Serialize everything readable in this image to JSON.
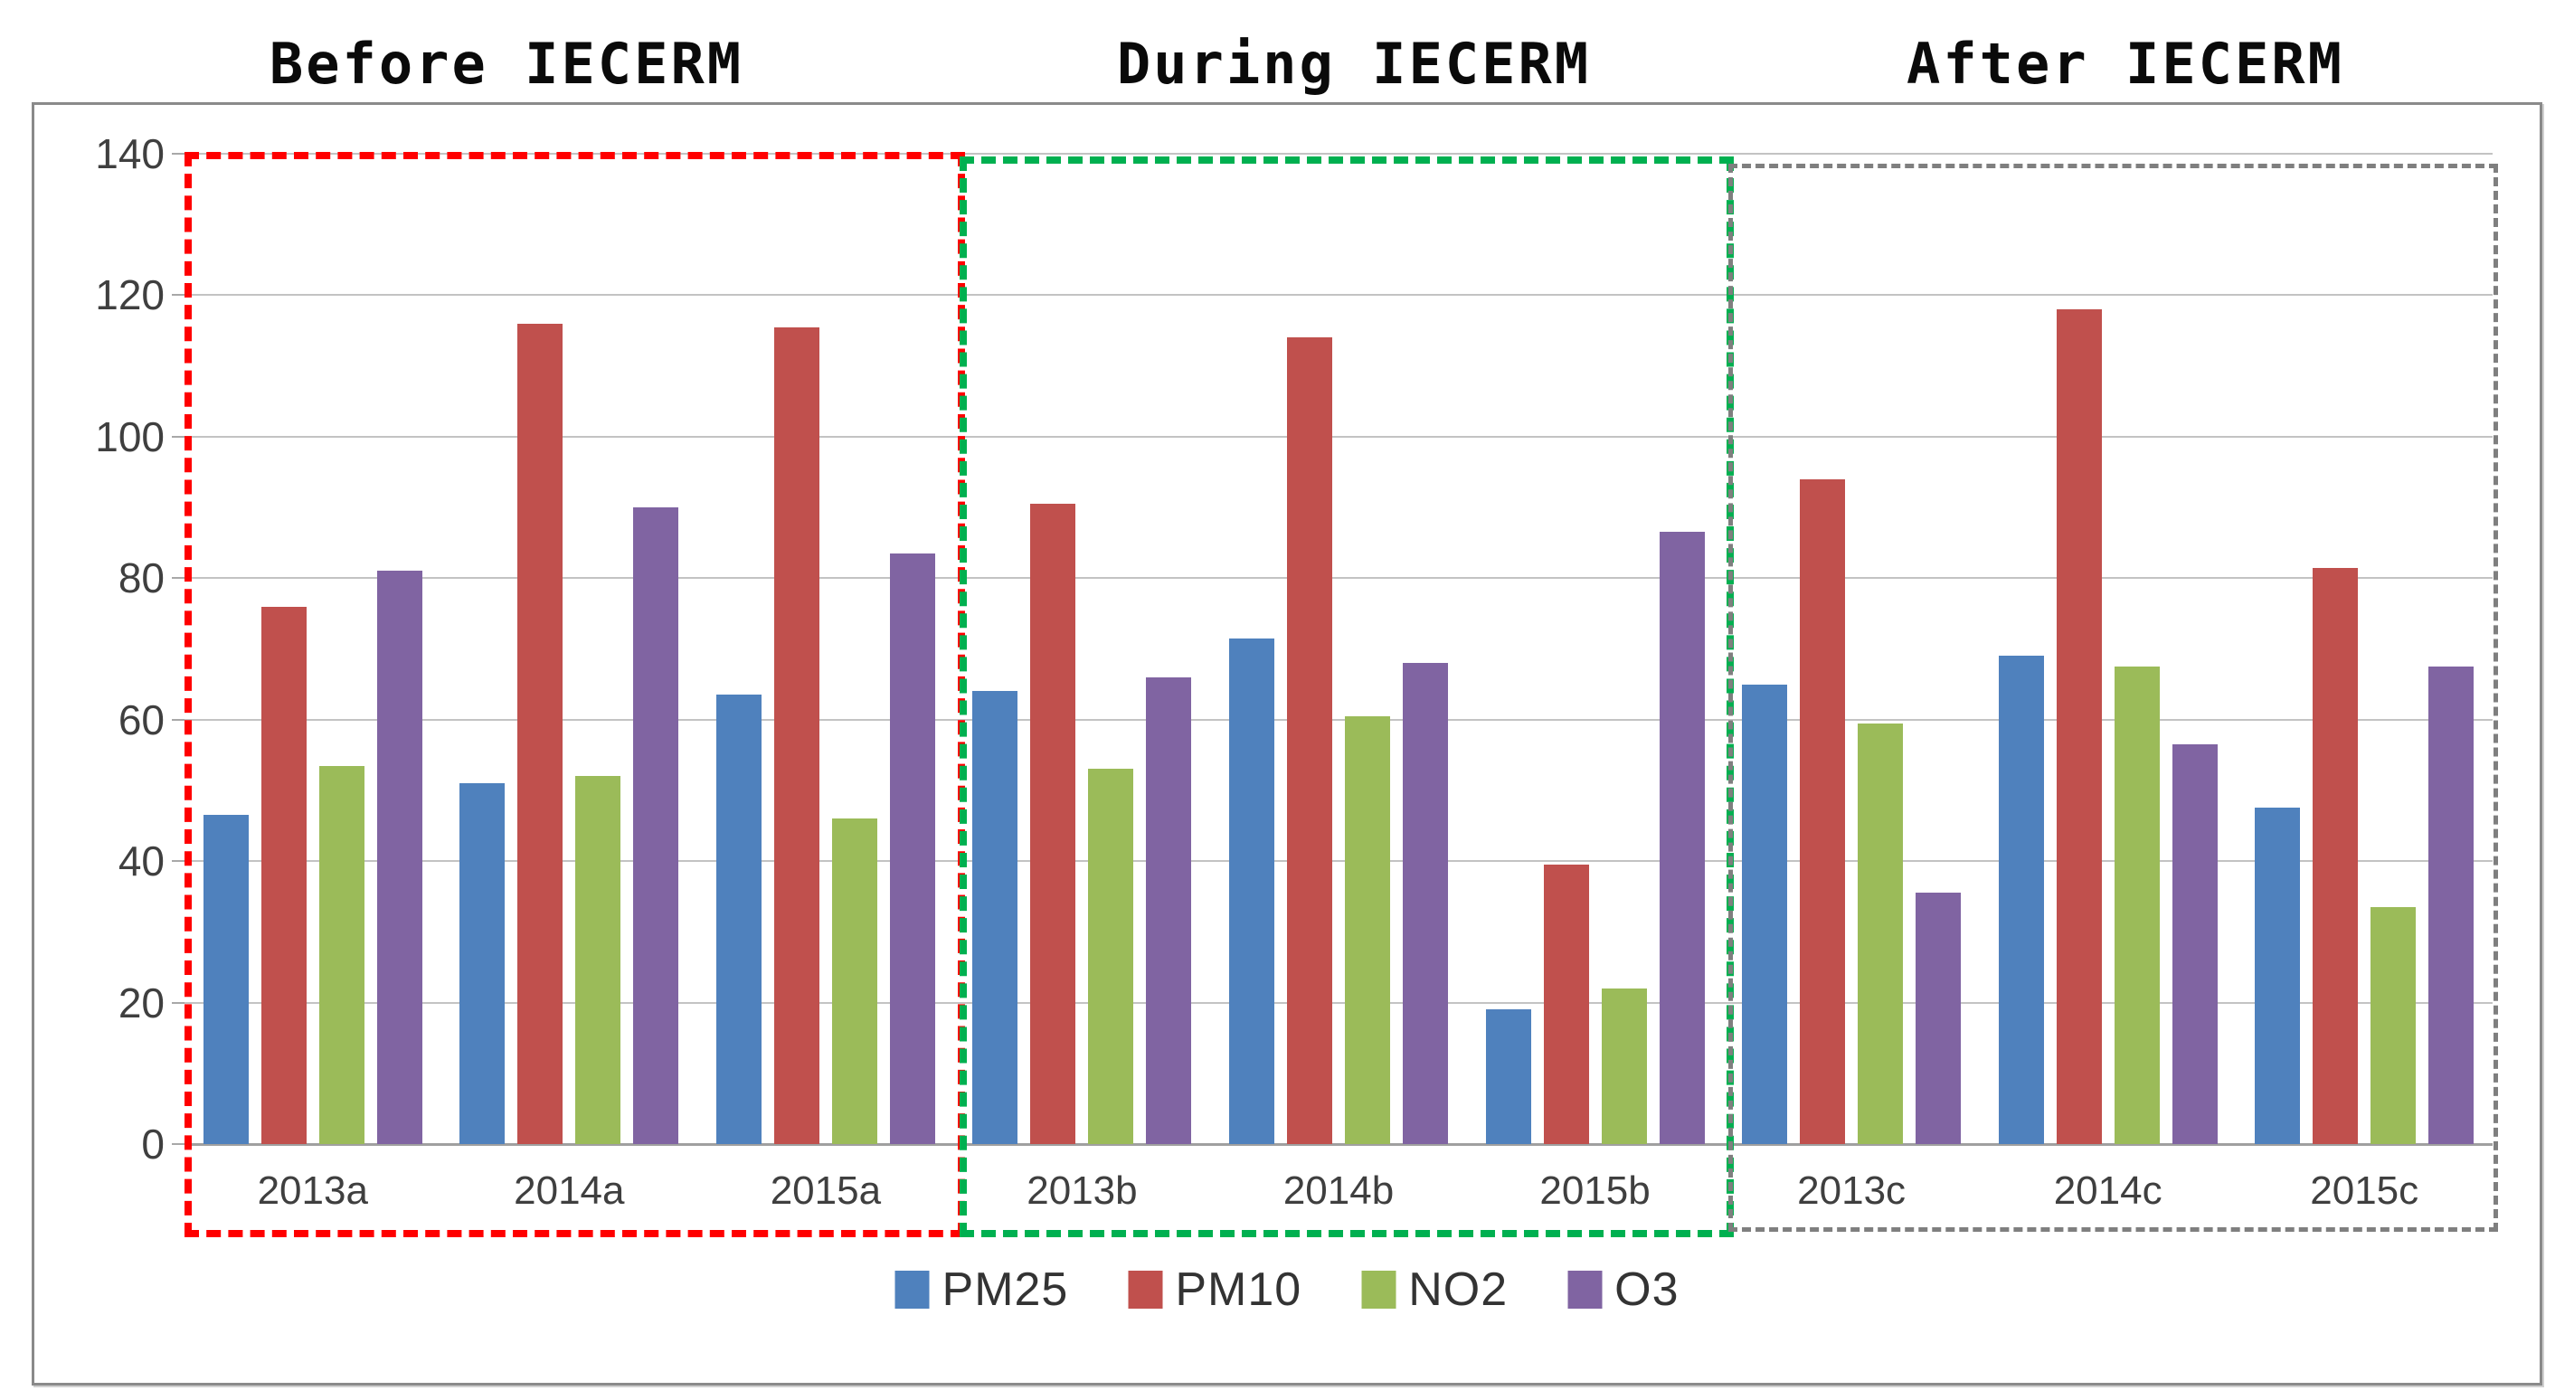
{
  "figure": {
    "sections": [
      {
        "title": "Before IECERM",
        "box_color": "#FF0000",
        "categories": [
          "2013a",
          "2014a",
          "2015a"
        ]
      },
      {
        "title": "During IECERM",
        "box_color": "#00B050",
        "categories": [
          "2013b",
          "2014b",
          "2015b"
        ]
      },
      {
        "title": "After IECERM",
        "box_color": "#7F7F7F",
        "categories": [
          "2013c",
          "2014c",
          "2015c"
        ]
      }
    ]
  },
  "chart_data": {
    "type": "bar",
    "title": "",
    "xlabel": "",
    "ylabel": "",
    "categories": [
      "2013a",
      "2014a",
      "2015a",
      "2013b",
      "2014b",
      "2015b",
      "2013c",
      "2014c",
      "2015c"
    ],
    "series": [
      {
        "name": "PM25",
        "color": "#4F81BD",
        "values": [
          46.5,
          51,
          63.5,
          64,
          71.5,
          19,
          65,
          69,
          47.5
        ]
      },
      {
        "name": "PM10",
        "color": "#C0504D",
        "values": [
          76,
          116,
          115.5,
          90.5,
          114,
          39.5,
          94,
          118,
          81.5
        ]
      },
      {
        "name": "NO2",
        "color": "#9BBB59",
        "values": [
          53.5,
          52,
          46,
          53,
          60.5,
          22,
          59.5,
          67.5,
          33.5
        ]
      },
      {
        "name": "O3",
        "color": "#8064A2",
        "values": [
          81,
          90,
          83.5,
          66,
          68,
          86.5,
          35.5,
          56.5,
          67.5
        ]
      }
    ],
    "ylim": [
      0,
      140
    ],
    "yticks": [
      0,
      20,
      40,
      60,
      80,
      100,
      120,
      140
    ],
    "grid": true,
    "legend_position": "bottom",
    "annotations": {
      "gridline_color": "#c3c3c3",
      "axis_color": "#a0a0a0",
      "frame_color": "#8a8a8a",
      "text_color": "#3f3f3f"
    }
  }
}
